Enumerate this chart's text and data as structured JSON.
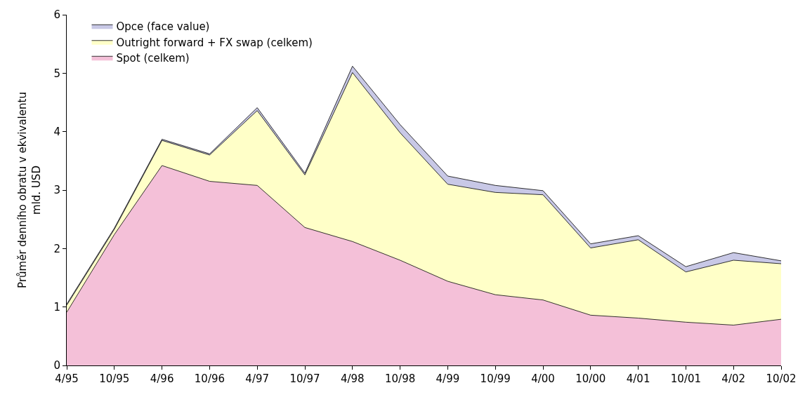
{
  "chart_data": {
    "type": "area",
    "stacked": true,
    "ylabel": "Průměr denního obratu v ekvivalentu\nmld. USD",
    "categories": [
      "4/95",
      "10/95",
      "4/96",
      "10/96",
      "4/97",
      "10/97",
      "4/98",
      "10/98",
      "4/99",
      "10/99",
      "4/00",
      "10/00",
      "4/01",
      "10/01",
      "4/02",
      "10/02"
    ],
    "series": [
      {
        "name": "Spot (celkem)",
        "color": "#f4c0d8",
        "values": [
          0.91,
          2.24,
          3.42,
          3.15,
          3.08,
          2.36,
          2.12,
          1.8,
          1.44,
          1.21,
          1.12,
          0.86,
          0.81,
          0.74,
          0.69,
          0.79
        ]
      },
      {
        "name": "Outright forward + FX swap (celkem)",
        "color": "#ffffc8",
        "values": [
          0.12,
          0.09,
          0.43,
          0.45,
          1.28,
          0.9,
          2.89,
          2.18,
          1.66,
          1.75,
          1.8,
          1.15,
          1.34,
          0.86,
          1.11,
          0.95
        ]
      },
      {
        "name": "Opce (face value)",
        "color": "#c8c8e6",
        "values": [
          0.02,
          0.02,
          0.02,
          0.02,
          0.05,
          0.03,
          0.11,
          0.14,
          0.14,
          0.12,
          0.07,
          0.07,
          0.07,
          0.09,
          0.13,
          0.05
        ]
      }
    ],
    "ylim": [
      0,
      6
    ],
    "yticks": [
      0,
      1,
      2,
      3,
      4,
      5,
      6
    ],
    "legend": "top left"
  }
}
